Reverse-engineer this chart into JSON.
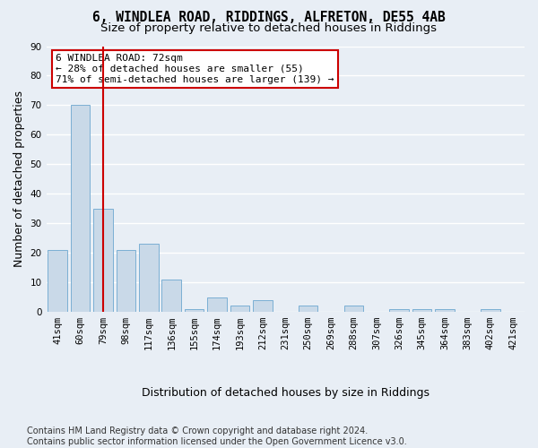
{
  "title": "6, WINDLEA ROAD, RIDDINGS, ALFRETON, DE55 4AB",
  "subtitle": "Size of property relative to detached houses in Riddings",
  "xlabel": "Distribution of detached houses by size in Riddings",
  "ylabel": "Number of detached properties",
  "categories": [
    "41sqm",
    "60sqm",
    "79sqm",
    "98sqm",
    "117sqm",
    "136sqm",
    "155sqm",
    "174sqm",
    "193sqm",
    "212sqm",
    "231sqm",
    "250sqm",
    "269sqm",
    "288sqm",
    "307sqm",
    "326sqm",
    "345sqm",
    "364sqm",
    "383sqm",
    "402sqm",
    "421sqm"
  ],
  "values": [
    21,
    70,
    35,
    21,
    23,
    11,
    1,
    5,
    2,
    4,
    0,
    2,
    0,
    2,
    0,
    1,
    1,
    1,
    0,
    1,
    0
  ],
  "bar_color": "#c9d9e8",
  "bar_edge_color": "#7bafd4",
  "vline_x_index": 2,
  "vline_color": "#cc0000",
  "annotation_lines": [
    "6 WINDLEA ROAD: 72sqm",
    "← 28% of detached houses are smaller (55)",
    "71% of semi-detached houses are larger (139) →"
  ],
  "annotation_box_edge_color": "#cc0000",
  "annotation_box_face_color": "#ffffff",
  "ylim": [
    0,
    90
  ],
  "yticks": [
    0,
    10,
    20,
    30,
    40,
    50,
    60,
    70,
    80,
    90
  ],
  "footer": "Contains HM Land Registry data © Crown copyright and database right 2024.\nContains public sector information licensed under the Open Government Licence v3.0.",
  "bg_color": "#e8eef5",
  "plot_bg_color": "#e8eef5",
  "grid_color": "#ffffff",
  "title_fontsize": 10.5,
  "subtitle_fontsize": 9.5,
  "xlabel_fontsize": 9,
  "ylabel_fontsize": 9,
  "tick_fontsize": 7.5,
  "ann_fontsize": 8,
  "footer_fontsize": 7
}
